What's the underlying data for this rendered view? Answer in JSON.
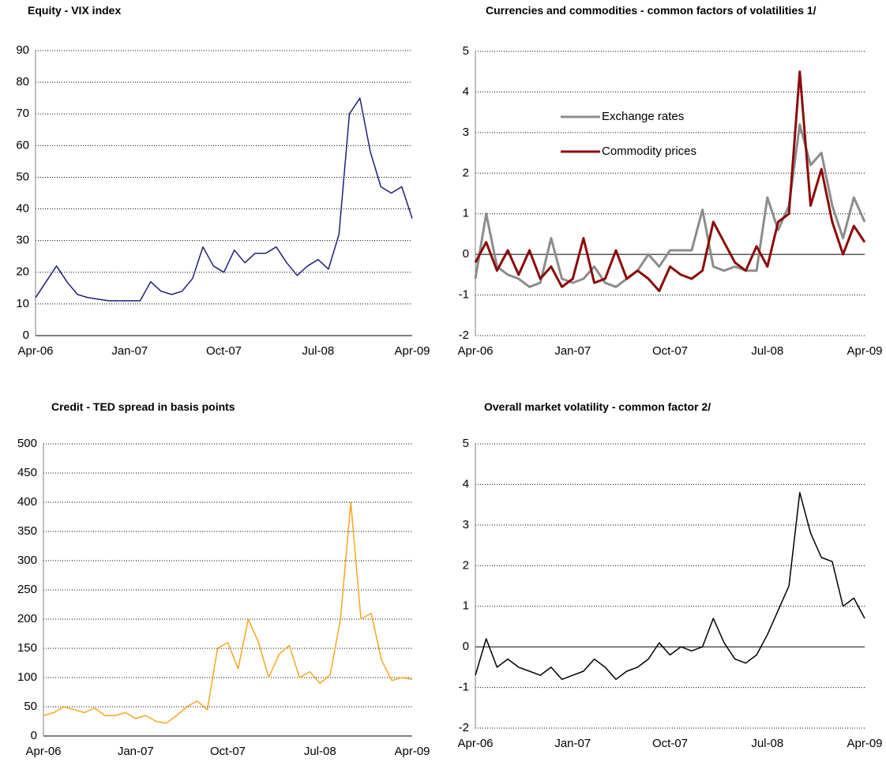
{
  "chart_data": [
    {
      "type": "line",
      "title": "Equity - VIX index",
      "categories": [
        "Apr-06",
        null,
        null,
        null,
        null,
        null,
        null,
        null,
        null,
        "Jan-07",
        null,
        null,
        null,
        null,
        null,
        null,
        null,
        null,
        "Oct-07",
        null,
        null,
        null,
        null,
        null,
        null,
        null,
        null,
        "Jul-08",
        null,
        null,
        null,
        null,
        null,
        null,
        null,
        null,
        "Apr-09"
      ],
      "series": [
        {
          "color": "#1f1f7a",
          "values": [
            12,
            17,
            22,
            17,
            13,
            12,
            11.5,
            11,
            11,
            11,
            11,
            17,
            14,
            13,
            14,
            18,
            28,
            22,
            20,
            27,
            23,
            26,
            26,
            28,
            23,
            19,
            22,
            24,
            21,
            32,
            70,
            75,
            58,
            47,
            45,
            47,
            37
          ]
        }
      ],
      "ylim": [
        0,
        90
      ],
      "yticks": [
        0,
        10,
        20,
        30,
        40,
        50,
        60,
        70,
        80,
        90
      ],
      "grid": true
    },
    {
      "type": "line",
      "title": "Currencies and commodities - common factors of volatilities 1/",
      "categories": [
        "Apr-06",
        null,
        null,
        null,
        null,
        null,
        null,
        null,
        null,
        "Jan-07",
        null,
        null,
        null,
        null,
        null,
        null,
        null,
        null,
        "Oct-07",
        null,
        null,
        null,
        null,
        null,
        null,
        null,
        null,
        "Jul-08",
        null,
        null,
        null,
        null,
        null,
        null,
        null,
        null,
        "Apr-09"
      ],
      "series": [
        {
          "name": "Exchange rates",
          "color": "#8c8c8c",
          "values": [
            -0.6,
            1.0,
            -0.3,
            -0.5,
            -0.6,
            -0.8,
            -0.7,
            0.4,
            -0.6,
            -0.7,
            -0.6,
            -0.3,
            -0.7,
            -0.8,
            -0.6,
            -0.4,
            0.0,
            -0.3,
            0.1,
            0.1,
            0.1,
            1.1,
            -0.3,
            -0.4,
            -0.3,
            -0.4,
            -0.4,
            1.4,
            0.6,
            1.2,
            3.2,
            2.2,
            2.5,
            1.2,
            0.4,
            1.4,
            0.8
          ]
        },
        {
          "name": "Commodity prices",
          "color": "#8b0a0a",
          "values": [
            -0.2,
            0.3,
            -0.4,
            0.1,
            -0.5,
            0.1,
            -0.6,
            -0.3,
            -0.8,
            -0.6,
            0.4,
            -0.7,
            -0.6,
            0.1,
            -0.6,
            -0.4,
            -0.6,
            -0.9,
            -0.3,
            -0.5,
            -0.6,
            -0.4,
            0.8,
            0.3,
            -0.2,
            -0.4,
            0.2,
            -0.3,
            0.8,
            1.0,
            4.5,
            1.2,
            2.1,
            0.8,
            0.0,
            0.7,
            0.3
          ]
        }
      ],
      "ylim": [
        -2,
        5
      ],
      "yticks": [
        -2,
        -1,
        0,
        1,
        2,
        3,
        4,
        5
      ],
      "grid": true
    },
    {
      "type": "line",
      "title": "Credit - TED spread in basis points",
      "categories": [
        "Apr-06",
        null,
        null,
        null,
        null,
        null,
        null,
        null,
        null,
        "Jan-07",
        null,
        null,
        null,
        null,
        null,
        null,
        null,
        null,
        "Oct-07",
        null,
        null,
        null,
        null,
        null,
        null,
        null,
        null,
        "Jul-08",
        null,
        null,
        null,
        null,
        null,
        null,
        null,
        null,
        "Apr-09"
      ],
      "series": [
        {
          "color": "#f5a623",
          "values": [
            35,
            40,
            50,
            45,
            40,
            48,
            35,
            35,
            40,
            30,
            35,
            25,
            22,
            35,
            50,
            60,
            45,
            150,
            160,
            115,
            200,
            160,
            100,
            140,
            155,
            100,
            110,
            90,
            105,
            200,
            400,
            200,
            210,
            130,
            95,
            100,
            97
          ]
        }
      ],
      "ylim": [
        0,
        500
      ],
      "yticks": [
        0,
        50,
        100,
        150,
        200,
        250,
        300,
        350,
        400,
        450,
        500
      ],
      "grid": true
    },
    {
      "type": "line",
      "title": "Overall market volatility - common factor 2/",
      "categories": [
        "Apr-06",
        null,
        null,
        null,
        null,
        null,
        null,
        null,
        null,
        "Jan-07",
        null,
        null,
        null,
        null,
        null,
        null,
        null,
        null,
        "Oct-07",
        null,
        null,
        null,
        null,
        null,
        null,
        null,
        null,
        "Jul-08",
        null,
        null,
        null,
        null,
        null,
        null,
        null,
        null,
        "Apr-09"
      ],
      "series": [
        {
          "color": "#000000",
          "values": [
            -0.7,
            0.2,
            -0.5,
            -0.3,
            -0.5,
            -0.6,
            -0.7,
            -0.5,
            -0.8,
            -0.7,
            -0.6,
            -0.3,
            -0.5,
            -0.8,
            -0.6,
            -0.5,
            -0.3,
            0.1,
            -0.2,
            0.0,
            -0.1,
            0.0,
            0.7,
            0.1,
            -0.3,
            -0.4,
            -0.2,
            0.3,
            0.9,
            1.5,
            3.8,
            2.8,
            2.2,
            2.1,
            1.0,
            1.2,
            0.7
          ]
        }
      ],
      "ylim": [
        -2,
        5
      ],
      "yticks": [
        -2,
        -1,
        0,
        1,
        2,
        3,
        4,
        5
      ],
      "grid": true
    }
  ]
}
